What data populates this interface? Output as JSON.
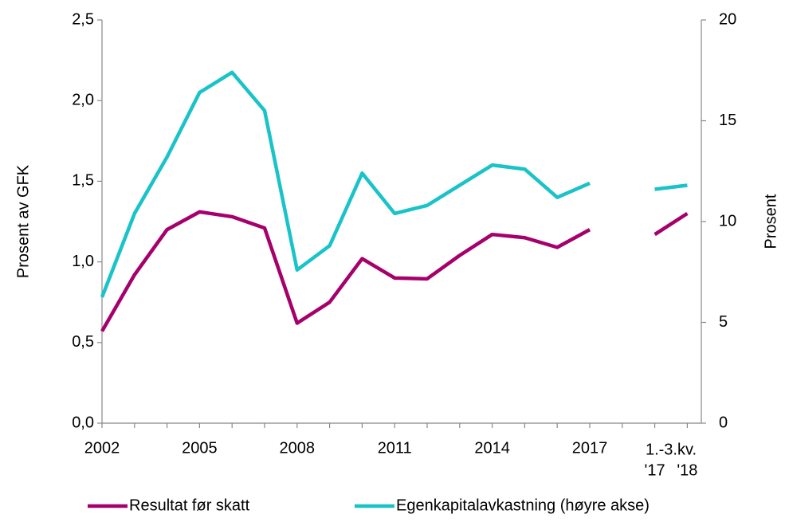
{
  "chart_data": {
    "type": "line",
    "categories": [
      "2002",
      null,
      null,
      "2005",
      null,
      null,
      "2008",
      null,
      null,
      "2011",
      null,
      null,
      "2014",
      null,
      null,
      "2017",
      null,
      "'17",
      "'18"
    ],
    "group_label": "1.-3.kv.",
    "ylabel": "Prosent av GFK",
    "y2label": "Prosent",
    "ylim": [
      0,
      2.5
    ],
    "yticks": [
      {
        "value": 0,
        "label": "0,0"
      },
      {
        "value": 0.5,
        "label": "0,5"
      },
      {
        "value": 1,
        "label": "1,0"
      },
      {
        "value": 1.5,
        "label": "1,5"
      },
      {
        "value": 2,
        "label": "2,0"
      },
      {
        "value": 2.5,
        "label": "2,5"
      }
    ],
    "y2lim": [
      0,
      20
    ],
    "y2ticks": [
      0,
      5,
      10,
      15,
      20
    ],
    "legend": "bottom",
    "series": [
      {
        "name": "Resultat før skatt",
        "color": "#a5006b",
        "values": [
          0.57,
          0.92,
          1.2,
          1.31,
          1.28,
          1.21,
          0.62,
          0.75,
          1.02,
          0.9,
          0.895,
          1.04,
          1.17,
          1.15,
          1.09,
          1.2,
          null,
          1.17,
          1.3
        ]
      },
      {
        "name": "Egenkapitalavkastning (høyre akse)",
        "color": "#19c3c8",
        "axis": "y2",
        "values": [
          6.25,
          10.4,
          13.2,
          16.4,
          17.4,
          15.5,
          7.6,
          8.8,
          12.4,
          10.4,
          10.8,
          11.8,
          12.8,
          12.6,
          11.2,
          11.9,
          null,
          11.6,
          11.8
        ]
      }
    ]
  }
}
